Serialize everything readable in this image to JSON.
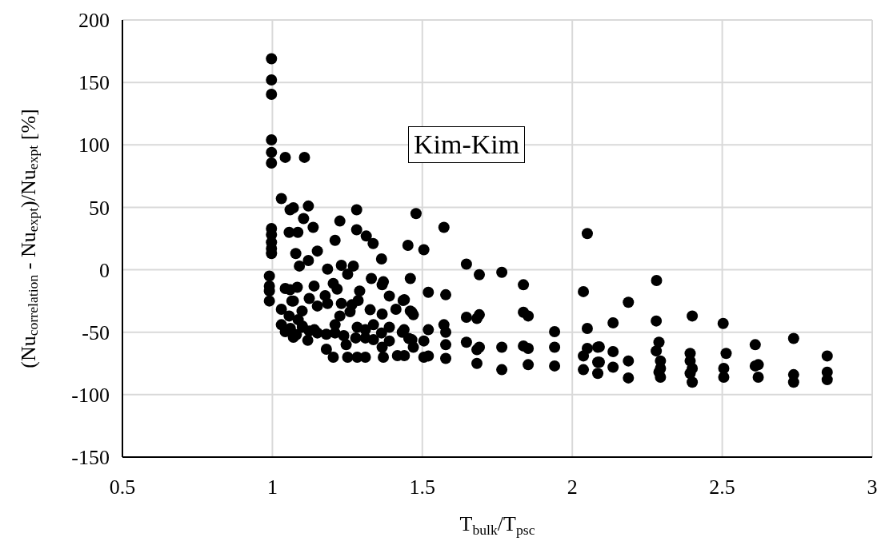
{
  "chart_data": {
    "type": "scatter",
    "xlabel": "T$_{bulk}$/T$_{psc}$",
    "ylabel": "(Nu$_{correlation}$ - Nu$_{expt}$)/Nu$_{expt}$ [%]",
    "annotations": [
      "Kim-Kim"
    ],
    "xlim": [
      0.5,
      3
    ],
    "xticks": [
      0.5,
      1,
      1.5,
      2,
      2.5,
      3
    ],
    "ylim": [
      -150,
      200
    ],
    "yticks": [
      -150,
      -100,
      -50,
      0,
      50,
      100,
      150,
      200
    ],
    "grid": true,
    "marker": "circle",
    "series": [
      {
        "color": "#000000",
        "x": [
          0.997,
          0.997,
          0.997,
          0.997,
          0.997,
          0.997,
          0.997,
          0.997,
          0.997,
          0.997,
          0.997,
          0.99,
          0.99,
          0.99,
          0.99,
          1.043,
          1.107,
          1.03,
          1.059,
          1.07,
          1.12,
          1.281,
          1.104,
          1.136,
          1.225,
          1.281,
          1.313,
          1.336,
          1.452,
          1.056,
          1.085,
          1.209,
          1.078,
          1.15,
          1.12,
          1.09,
          1.184,
          1.23,
          1.27,
          1.251,
          1.364,
          1.33,
          1.37,
          1.46,
          1.043,
          1.083,
          1.139,
          1.059,
          1.203,
          1.216,
          1.291,
          1.366,
          1.03,
          1.07,
          1.123,
          1.15,
          1.176,
          1.184,
          1.23,
          1.265,
          1.286,
          1.326,
          1.366,
          1.39,
          1.412,
          1.436,
          1.465,
          1.056,
          1.099,
          1.086,
          1.225,
          1.259,
          1.03,
          1.043,
          1.07,
          1.1,
          1.123,
          1.15,
          1.118,
          1.18,
          1.18,
          1.209,
          1.209,
          1.203,
          1.238,
          1.246,
          1.251,
          1.283,
          1.278,
          1.283,
          1.31,
          1.31,
          1.31,
          1.337,
          1.337,
          1.364,
          1.366,
          1.37,
          1.39,
          1.39,
          1.417,
          1.439,
          1.44,
          1.465,
          1.479,
          1.505,
          1.572,
          1.647,
          1.69,
          1.765,
          1.837,
          2.05,
          2.037,
          1.52,
          1.578,
          1.44,
          1.46,
          1.47,
          1.647,
          1.69,
          1.682,
          1.837,
          1.853,
          1.572,
          1.52,
          1.578,
          1.941,
          2.05,
          1.433,
          1.455,
          1.47,
          1.505,
          1.578,
          1.647,
          1.69,
          1.682,
          1.765,
          1.837,
          1.853,
          1.941,
          2.05,
          2.037,
          2.085,
          2.085,
          1.505,
          1.52,
          1.578,
          1.682,
          1.765,
          1.853,
          1.941,
          2.037,
          2.085,
          2.281,
          2.187,
          2.136,
          2.28,
          2.4,
          2.503,
          2.09,
          2.136,
          2.09,
          2.136,
          2.187,
          2.187,
          2.289,
          2.28,
          2.294,
          2.294,
          2.294,
          2.289,
          2.393,
          2.393,
          2.4,
          2.393,
          2.4,
          2.513,
          2.505,
          2.505,
          2.61,
          2.62,
          2.61,
          2.62,
          2.738,
          2.738,
          2.738,
          2.85,
          2.85,
          2.85,
          1.06,
          1.08,
          1.1,
          1.065,
          1.14
        ],
        "values": [
          169,
          152,
          140.5,
          104,
          94,
          85.5,
          33,
          28,
          22,
          17,
          13,
          -5,
          -13,
          -17,
          -25,
          90,
          90,
          57,
          48,
          49.6,
          51,
          48,
          41,
          34,
          39,
          32,
          27,
          21,
          19.6,
          30,
          30,
          23.6,
          13,
          15,
          7.4,
          3,
          0.5,
          3.6,
          3,
          -3.5,
          8.7,
          -7,
          -9.6,
          -7,
          -15,
          -14,
          -13,
          -16,
          -11,
          -15.5,
          -17,
          -12,
          -31.6,
          -25,
          -23,
          -29,
          -20.7,
          -27,
          -27,
          -28,
          -24.6,
          -32,
          -35.5,
          -21,
          -31.6,
          -24.6,
          -34,
          -37,
          -33,
          -40,
          -37,
          -33.6,
          -44,
          -49.5,
          -54,
          -46,
          -49,
          -50.6,
          -56.5,
          -51.6,
          -63.6,
          -44,
          -50.6,
          -70,
          -52.7,
          -60,
          -70,
          -46,
          -54.6,
          -70,
          -48,
          -54.6,
          -70,
          -44,
          -56,
          -50.6,
          -62,
          -70,
          -46,
          -57,
          -68.7,
          -48,
          -68.7,
          -56,
          45,
          16,
          34,
          4.5,
          -4,
          -2,
          -12,
          29,
          -17.5,
          -18,
          -20,
          -24,
          -33,
          -36,
          -38,
          -36,
          -39,
          -34,
          -37,
          -44,
          -48,
          -50,
          -49.5,
          -47,
          -50,
          -55,
          -62,
          -57,
          -60,
          -58,
          -62,
          -64,
          -62,
          -61,
          -63,
          -62,
          -63,
          -69,
          -62,
          -74,
          -70,
          -69,
          -71,
          -75,
          -80,
          -76,
          -77,
          -80,
          -83,
          -8.6,
          -26,
          -42.5,
          -41,
          -37,
          -43,
          -61.7,
          -65.5,
          -74,
          -78,
          -73,
          -86.6,
          -58,
          -65,
          -73,
          -79,
          -86,
          -82,
          -67,
          -73,
          -79,
          -83,
          -90,
          -67,
          -79,
          -86,
          -60,
          -76,
          -77,
          -86,
          -55,
          -84,
          -90,
          -69,
          -82,
          -88,
          -47,
          -52,
          -45,
          -25,
          -48
        ]
      }
    ]
  }
}
